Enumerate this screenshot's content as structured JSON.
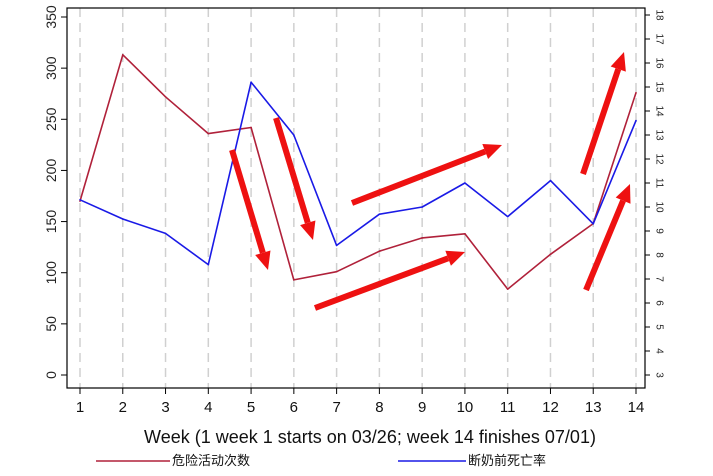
{
  "chart_data": {
    "type": "line",
    "x": [
      1,
      2,
      3,
      4,
      5,
      6,
      7,
      8,
      9,
      10,
      11,
      12,
      13,
      14
    ],
    "xlabel": "Week (1 week 1 starts on 03/26; week 14 finishes 07/01)",
    "xlim": [
      1,
      14
    ],
    "ylim_left": [
      0,
      350
    ],
    "ylim_right": [
      3,
      18
    ],
    "left_ticks": [
      0,
      50,
      100,
      150,
      200,
      250,
      300,
      350
    ],
    "right_ticks": [
      3,
      4,
      5,
      6,
      7,
      8,
      9,
      10,
      11,
      12,
      13,
      14,
      15,
      16,
      17,
      18
    ],
    "vertical_grid": true,
    "legend_position": "bottom",
    "series": [
      {
        "name": "危险活动次数",
        "axis": "left",
        "color": "#b0213a",
        "values": [
          170,
          313,
          272,
          236,
          242,
          93,
          101,
          121,
          134,
          138,
          84,
          118,
          148,
          276
        ]
      },
      {
        "name": "断奶前死亡率",
        "axis": "right",
        "color": "#1a1ae6",
        "values": [
          10.3,
          9.5,
          8.9,
          7.6,
          15.2,
          13.0,
          8.4,
          9.7,
          10.0,
          11.0,
          9.6,
          11.1,
          9.3,
          13.6
        ]
      }
    ],
    "annotations": {
      "arrow_color": "#ee1111"
    }
  }
}
